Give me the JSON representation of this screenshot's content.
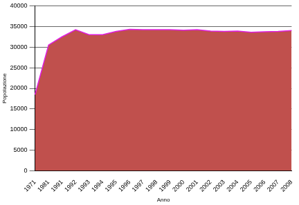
{
  "chart_data": {
    "type": "area",
    "x_label": "Anno",
    "y_label": "Popolazione",
    "categories": [
      "1971",
      "1981",
      "1991",
      "1992",
      "1993",
      "1994",
      "1995",
      "1996",
      "1997",
      "1998",
      "1999",
      "2000",
      "2001",
      "2002",
      "2003",
      "2004",
      "2005",
      "2006",
      "2007",
      "2008"
    ],
    "values": [
      18500,
      30500,
      32500,
      34200,
      33000,
      33000,
      33800,
      34300,
      34200,
      34200,
      34200,
      34100,
      34200,
      33900,
      33800,
      33900,
      33600,
      33700,
      33800,
      34000
    ],
    "color": "#c0504d",
    "ylim": [
      0,
      40000
    ],
    "yticks": [
      0,
      5000,
      10000,
      15000,
      20000,
      25000,
      30000,
      35000,
      40000
    ],
    "grid": true
  }
}
